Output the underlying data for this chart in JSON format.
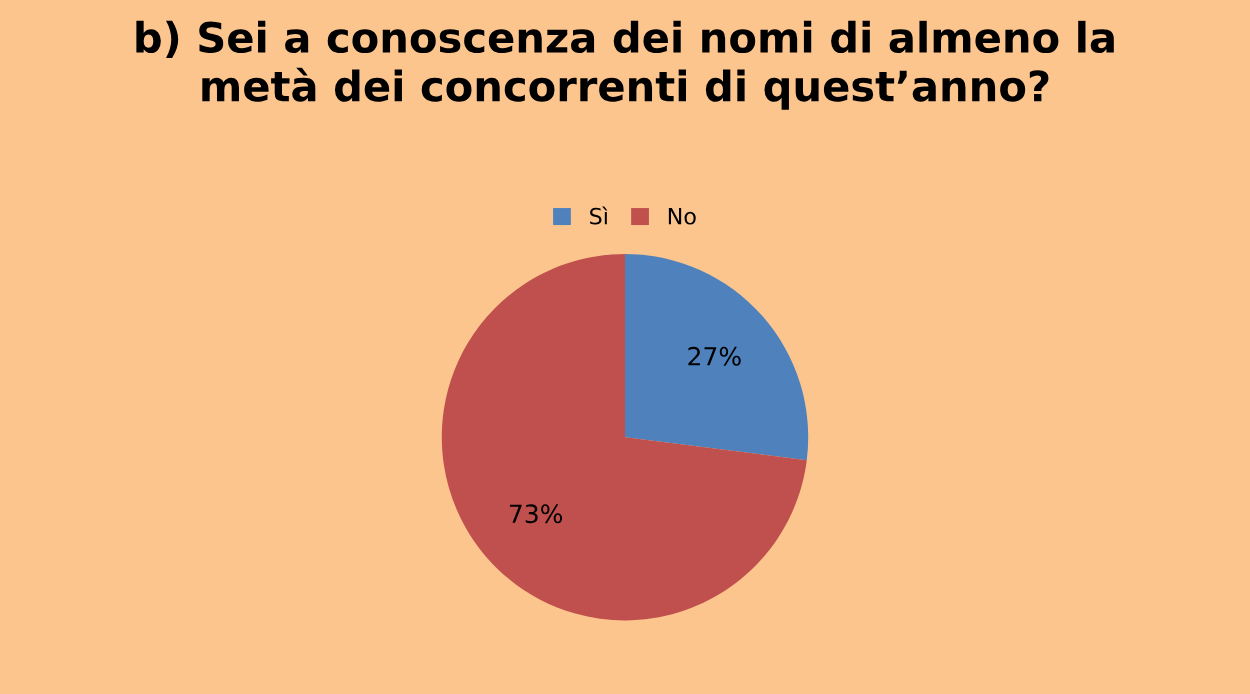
{
  "chart_data": {
    "type": "pie",
    "title": "b) Sei a conoscenza dei nomi di almeno la\nmetà dei concorrenti di quest’anno?",
    "categories": [
      "Sì",
      "No"
    ],
    "values": [
      27,
      73
    ],
    "value_labels": [
      "27%",
      "73%"
    ],
    "colors": [
      "#4f81bd",
      "#c0504d"
    ],
    "legend": "top"
  }
}
